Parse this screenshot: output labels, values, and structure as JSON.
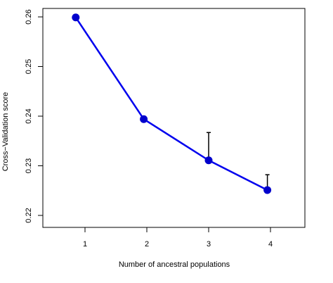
{
  "chart_data": {
    "type": "line",
    "title": "",
    "xlabel": "Number of ancestral populations",
    "ylabel": "Cross−Validation score",
    "x": [
      1,
      2,
      3,
      4
    ],
    "xticks": [
      "1",
      "2",
      "3",
      "4"
    ],
    "yticks": [
      "0.22",
      "0.23",
      "0.24",
      "0.25",
      "0.26"
    ],
    "xlim": [
      0.5,
      4.5
    ],
    "ylim": [
      0.218,
      0.262
    ],
    "series": [
      {
        "values": [
          0.2599,
          0.2394,
          0.2311,
          0.2251
        ],
        "error_upper": [
          0.2599,
          0.2394,
          0.2367,
          0.2282
        ],
        "color": "#0000ee",
        "marker_color": "#0000cc",
        "x_offsets": [
          -0.15,
          -0.05,
          0.0,
          -0.05
        ]
      }
    ],
    "grid": false,
    "legend": "none"
  }
}
